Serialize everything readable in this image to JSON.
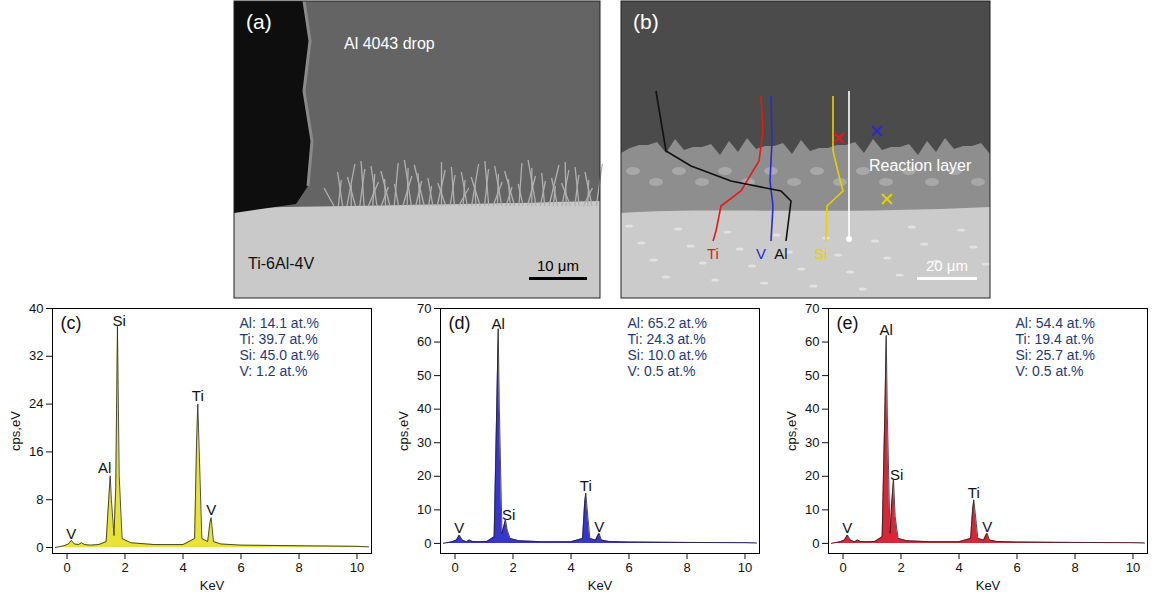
{
  "images": [
    {
      "label": "(a)",
      "texts": [
        "Al 4043 drop",
        "Ti-6Al-4V"
      ],
      "scale_bar": "10 μm"
    },
    {
      "label": "(b)",
      "texts": [
        "Reaction layer"
      ],
      "scale_bar": "20 μm",
      "line_profiles": [
        {
          "name": "Ti",
          "color": "#e31a1c"
        },
        {
          "name": "V",
          "color": "#2a2ad0"
        },
        {
          "name": "Al",
          "color": "#111111"
        },
        {
          "name": "Si",
          "color": "#e6d200"
        }
      ],
      "points": [
        {
          "color": "#e31a1c"
        },
        {
          "color": "#2a2ad0"
        },
        {
          "color": "#e6d200"
        }
      ]
    }
  ],
  "chart_data": [
    {
      "type": "area",
      "panel_label": "(c)",
      "x_label": "KeV",
      "y_label": "cps,eV",
      "color": "#e6e020",
      "xlim": [
        -0.5,
        10.5
      ],
      "xticks": [
        0,
        2,
        4,
        6,
        8,
        10
      ],
      "ylim": [
        -1,
        40
      ],
      "yticks": [
        0,
        8,
        16,
        24,
        32,
        40
      ],
      "x": [
        -0.4,
        -0.1,
        0.05,
        0.15,
        0.25,
        0.4,
        0.5,
        0.6,
        0.8,
        1.1,
        1.35,
        1.45,
        1.49,
        1.53,
        1.62,
        1.68,
        1.74,
        1.8,
        1.9,
        2.2,
        3.0,
        4.0,
        4.4,
        4.47,
        4.51,
        4.56,
        4.65,
        4.85,
        4.93,
        4.97,
        5.05,
        5.3,
        6.0,
        8.0,
        10.0,
        10.4
      ],
      "values": [
        0,
        0.3,
        0.6,
        1.2,
        0.6,
        0.5,
        0.8,
        0.5,
        0.4,
        0.5,
        1.0,
        9,
        12,
        8,
        2,
        10,
        37,
        12,
        1.5,
        0.8,
        0.5,
        0.5,
        1.5,
        18,
        24,
        16,
        1.5,
        1.0,
        4.2,
        5,
        1.0,
        0.6,
        0.4,
        0.3,
        0.2,
        0.1
      ],
      "annotations": [
        {
          "text": "V",
          "x": 0.15,
          "y": 1.5
        },
        {
          "text": "Al",
          "x": 1.3,
          "y": 12.5
        },
        {
          "text": "Si",
          "x": 1.8,
          "y": 37
        },
        {
          "text": "Ti",
          "x": 4.51,
          "y": 24.5
        },
        {
          "text": "V",
          "x": 4.97,
          "y": 5.5
        }
      ],
      "composition": [
        "Al: 14.1 at.%",
        "Ti: 39.7 at.%",
        "Si: 45.0 at.%",
        "V: 1.2 at.%"
      ]
    },
    {
      "type": "area",
      "panel_label": "(d)",
      "x_label": "KeV",
      "y_label": "cps,eV",
      "color": "#2020c8",
      "xlim": [
        -0.5,
        10.5
      ],
      "xticks": [
        0,
        2,
        4,
        6,
        8,
        10
      ],
      "ylim": [
        -3,
        70
      ],
      "yticks": [
        0,
        10,
        20,
        30,
        40,
        50,
        60,
        70
      ],
      "x": [
        -0.4,
        -0.1,
        0.05,
        0.15,
        0.25,
        0.4,
        0.5,
        0.6,
        0.8,
        1.1,
        1.35,
        1.45,
        1.49,
        1.53,
        1.62,
        1.68,
        1.74,
        1.8,
        1.9,
        2.2,
        3.0,
        4.0,
        4.4,
        4.47,
        4.51,
        4.56,
        4.65,
        4.85,
        4.93,
        4.97,
        5.05,
        5.3,
        6.0,
        8.0,
        10.0,
        10.4
      ],
      "values": [
        0,
        0.5,
        1,
        2.5,
        1,
        0.5,
        1,
        0.6,
        0.5,
        0.6,
        2,
        45,
        64,
        40,
        3,
        5,
        7,
        4,
        1.5,
        0.8,
        0.5,
        0.5,
        1.5,
        12,
        15,
        10,
        1.5,
        1,
        2.5,
        3,
        1,
        0.6,
        0.4,
        0.3,
        0.2,
        0.1
      ],
      "annotations": [
        {
          "text": "V",
          "x": 0.15,
          "y": 3
        },
        {
          "text": "Al",
          "x": 1.49,
          "y": 64
        },
        {
          "text": "Si",
          "x": 1.85,
          "y": 7
        },
        {
          "text": "Ti",
          "x": 4.51,
          "y": 15.5
        },
        {
          "text": "V",
          "x": 4.97,
          "y": 3.5
        }
      ],
      "composition": [
        "Al: 65.2 at.%",
        "Ti: 24.3 at.%",
        "Si: 10.0 at.%",
        "V: 0.5 at.%"
      ]
    },
    {
      "type": "area",
      "panel_label": "(e)",
      "x_label": "KeV",
      "y_label": "cps,eV",
      "color": "#d01020",
      "xlim": [
        -0.5,
        10.5
      ],
      "xticks": [
        0,
        2,
        4,
        6,
        8,
        10
      ],
      "ylim": [
        -3,
        70
      ],
      "yticks": [
        0,
        10,
        20,
        30,
        40,
        50,
        60,
        70
      ],
      "x": [
        -0.4,
        -0.1,
        0.05,
        0.15,
        0.25,
        0.4,
        0.5,
        0.6,
        0.8,
        1.1,
        1.35,
        1.45,
        1.49,
        1.53,
        1.62,
        1.68,
        1.74,
        1.8,
        1.9,
        2.2,
        3.0,
        4.0,
        4.4,
        4.47,
        4.51,
        4.56,
        4.65,
        4.85,
        4.93,
        4.97,
        5.05,
        5.3,
        6.0,
        8.0,
        10.0,
        10.4
      ],
      "values": [
        0,
        0.5,
        1,
        2.5,
        1,
        0.5,
        1,
        0.6,
        0.5,
        0.6,
        2,
        42,
        62,
        38,
        3,
        12,
        19,
        8,
        1.5,
        0.8,
        0.5,
        0.5,
        1.5,
        10,
        13,
        9,
        1.5,
        1,
        2.5,
        3,
        1,
        0.6,
        0.4,
        0.3,
        0.2,
        0.1
      ],
      "annotations": [
        {
          "text": "V",
          "x": 0.15,
          "y": 3
        },
        {
          "text": "Al",
          "x": 1.49,
          "y": 62
        },
        {
          "text": "Si",
          "x": 1.85,
          "y": 19
        },
        {
          "text": "Ti",
          "x": 4.51,
          "y": 13.5
        },
        {
          "text": "V",
          "x": 4.97,
          "y": 3.5
        }
      ],
      "composition": [
        "Al: 54.4 at.%",
        "Ti: 19.4 at.%",
        "Si: 25.7 at.%",
        "V: 0.5 at.%"
      ]
    }
  ]
}
